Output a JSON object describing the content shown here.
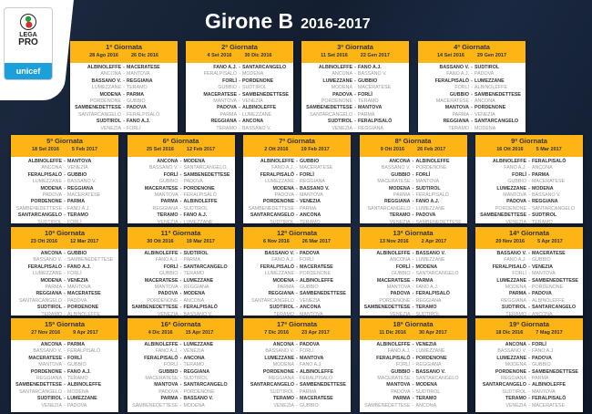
{
  "logo": {
    "text1": "LEGA",
    "text2": "PRO",
    "band": "unicef"
  },
  "header": {
    "title": "Girone B",
    "season": "2016-2017"
  },
  "colors": {
    "background": "#142033",
    "header_bar": "#fcb514"
  },
  "giornate": [
    {
      "label": "1ª Giornata",
      "andata": "28 Ago 2016",
      "ritorno": "26 Dic 2016",
      "matches": [
        [
          "ALBINOLEFFE",
          "MACERATESE"
        ],
        [
          "ANCONA",
          "MANTOVA"
        ],
        [
          "BASSANO V.",
          "REGGIANA"
        ],
        [
          "LUMEZZANE",
          "TERAMO"
        ],
        [
          "MODENA",
          "PARMA"
        ],
        [
          "PORDENONE",
          "GUBBIO"
        ],
        [
          "SAMBENEDETTESE",
          "PADOVA"
        ],
        [
          "SANTARCANGELO",
          "FERALPISALÒ"
        ],
        [
          "SUDTIROL",
          "FANO A.J."
        ],
        [
          "VENEZIA",
          "FORLÌ"
        ]
      ]
    },
    {
      "label": "2ª Giornata",
      "andata": "4 Set 2016",
      "ritorno": "30 Dic 2016",
      "matches": [
        [
          "FANO A.J.",
          "SANTARCANGELO"
        ],
        [
          "FERALPISALÒ",
          "MODENA"
        ],
        [
          "FORLÌ",
          "PORDENONE"
        ],
        [
          "GUBBIO",
          "SUDTIROL"
        ],
        [
          "MACERATESE",
          "SAMBENEDETTESE"
        ],
        [
          "MANTOVA",
          "VENEZIA"
        ],
        [
          "PADOVA",
          "ALBINOLEFFE"
        ],
        [
          "PARMA",
          "LUMEZZANE"
        ],
        [
          "REGGIANA",
          "ANCONA"
        ],
        [
          "TERAMO",
          "BASSANO V."
        ]
      ]
    },
    {
      "label": "3ª Giornata",
      "andata": "11 Set 2016",
      "ritorno": "22 Gen 2017",
      "matches": [
        [
          "ALBINOLEFFE",
          "FANO A.J."
        ],
        [
          "ANCONA",
          "BASSANO V."
        ],
        [
          "LUMEZZANE",
          "GUBBIO"
        ],
        [
          "MODENA",
          "MACERATESE"
        ],
        [
          "PADOVA",
          "FORLÌ"
        ],
        [
          "PORDENONE",
          "TERAMO"
        ],
        [
          "SAMBENEDETTESE",
          "MANTOVA"
        ],
        [
          "SANTARCANGELO",
          "PARMA"
        ],
        [
          "SUDTIROL",
          "FERALPISALÒ"
        ],
        [
          "VENEZIA",
          "REGGIANA"
        ]
      ]
    },
    {
      "label": "4ª Giornata",
      "andata": "14 Set 2016",
      "ritorno": "29 Gen 2017",
      "matches": [
        [
          "BASSANO V.",
          "SUDTIROL"
        ],
        [
          "FANO A.J.",
          "PADOVA"
        ],
        [
          "FERALPISALÒ",
          "LUMEZZANE"
        ],
        [
          "FORLÌ",
          "ALBINOLEFFE"
        ],
        [
          "GUBBIO",
          "SAMBENEDETTESE"
        ],
        [
          "MACERATESE",
          "ANCONA"
        ],
        [
          "MANTOVA",
          "PORDENONE"
        ],
        [
          "PARMA",
          "VENEZIA"
        ],
        [
          "REGGIANA",
          "SANTARCANGELO"
        ],
        [
          "TERAMO",
          "MODENA"
        ]
      ]
    },
    {
      "label": "5ª Giornata",
      "andata": "18 Set 2016",
      "ritorno": "5 Feb 2017",
      "matches": [
        [
          "ALBINOLEFFE",
          "MANTOVA"
        ],
        [
          "ANCONA",
          "VENEZIA"
        ],
        [
          "FERALPISALÒ",
          "GUBBIO"
        ],
        [
          "LUMEZZANE",
          "BASSANO V."
        ],
        [
          "MODENA",
          "REGGIANA"
        ],
        [
          "PADOVA",
          "MACERATESE"
        ],
        [
          "PORDENONE",
          "PARMA"
        ],
        [
          "SAMBENEDETTESE",
          "FANO A.J."
        ],
        [
          "SANTARCANGELO",
          "TERAMO"
        ],
        [
          "SUDTIROL",
          "FORLÌ"
        ]
      ]
    },
    {
      "label": "6ª Giornata",
      "andata": "25 Set 2016",
      "ritorno": "12 Feb 2017",
      "matches": [
        [
          "ANCONA",
          "MODENA"
        ],
        [
          "BASSANO V.",
          "SANTARCANGELO"
        ],
        [
          "FORLÌ",
          "SAMBENEDETTESE"
        ],
        [
          "GUBBIO",
          "PADOVA"
        ],
        [
          "MACERATESE",
          "PORDENONE"
        ],
        [
          "MANTOVA",
          "FERALPISALÒ"
        ],
        [
          "PARMA",
          "ALBINOLEFFE"
        ],
        [
          "REGGIANA",
          "SUDTIROL"
        ],
        [
          "TERAMO",
          "FANO A.J."
        ],
        [
          "VENEZIA",
          "LUMEZZANE"
        ]
      ]
    },
    {
      "label": "7ª Giornata",
      "andata": "2 Ott 2016",
      "ritorno": "19 Feb 2017",
      "matches": [
        [
          "ALBINOLEFFE",
          "GUBBIO"
        ],
        [
          "FANO A.J.",
          "MACERATESE"
        ],
        [
          "FERALPISALÒ",
          "FORLÌ"
        ],
        [
          "LUMEZZANE",
          "REGGIANA"
        ],
        [
          "MODENA",
          "BASSANO V."
        ],
        [
          "PADOVA",
          "MANTOVA"
        ],
        [
          "PORDENONE",
          "VENEZIA"
        ],
        [
          "SAMBENEDETTESE",
          "PARMA"
        ],
        [
          "SANTARCANGELO",
          "ANCONA"
        ],
        [
          "SUDTIROL",
          "TERAMO"
        ]
      ]
    },
    {
      "label": "8ª Giornata",
      "andata": "9 Ott 2016",
      "ritorno": "26 Feb 2017",
      "matches": [
        [
          "ANCONA",
          "ALBINOLEFFE"
        ],
        [
          "BASSANO V.",
          "PORDENONE"
        ],
        [
          "GUBBIO",
          "FORLÌ"
        ],
        [
          "MACERATESE",
          "MANTOVA"
        ],
        [
          "MODENA",
          "SUDTIROL"
        ],
        [
          "PARMA",
          "FERALPISALÒ"
        ],
        [
          "REGGIANA",
          "FANO A.J."
        ],
        [
          "SANTARCANGELO",
          "LUMEZZANE"
        ],
        [
          "TERAMO",
          "PADOVA"
        ],
        [
          "VENEZIA",
          "SAMBENEDETTESE"
        ]
      ]
    },
    {
      "label": "9ª Giornata",
      "andata": "16 Ott 2016",
      "ritorno": "5 Mar 2017",
      "matches": [
        [
          "ALBINOLEFFE",
          "FERALPISALÒ"
        ],
        [
          "FANO A.J.",
          "ANCONA"
        ],
        [
          "FORLÌ",
          "PARMA"
        ],
        [
          "GUBBIO",
          "MACERATESE"
        ],
        [
          "LUMEZZANE",
          "MODENA"
        ],
        [
          "MANTOVA",
          "BASSANO V."
        ],
        [
          "PADOVA",
          "REGGIANA"
        ],
        [
          "PORDENONE",
          "SANTARCANGELO"
        ],
        [
          "SAMBENEDETTESE",
          "SUDTIROL"
        ],
        [
          "VENEZIA",
          "TERAMO"
        ]
      ]
    },
    {
      "label": "10ª Giornata",
      "andata": "23 Ott 2016",
      "ritorno": "12 Mar 2017",
      "matches": [
        [
          "ANCONA",
          "GUBBIO"
        ],
        [
          "BASSANO V.",
          "SAMBENEDETTESE"
        ],
        [
          "FERALPISALÒ",
          "FANO A.J."
        ],
        [
          "LUMEZZANE",
          "FORLÌ"
        ],
        [
          "MODENA",
          "VENEZIA"
        ],
        [
          "PARMA",
          "MANTOVA"
        ],
        [
          "REGGIANA",
          "MACERATESE"
        ],
        [
          "SANTARCANGELO",
          "PADOVA"
        ],
        [
          "SUDTIROL",
          "PORDENONE"
        ],
        [
          "TERAMO",
          "ALBINOLEFFE"
        ]
      ]
    },
    {
      "label": "11ª Giornata",
      "andata": "30 Ott 2016",
      "ritorno": "19 Mar 2017",
      "matches": [
        [
          "ALBINOLEFFE",
          "SUDTIROL"
        ],
        [
          "FANO A.J.",
          "PARMA"
        ],
        [
          "FORLÌ",
          "SANTARCANGELO"
        ],
        [
          "GUBBIO",
          "TERAMO"
        ],
        [
          "MACERATESE",
          "LUMEZZANE"
        ],
        [
          "MANTOVA",
          "REGGIANA"
        ],
        [
          "PADOVA",
          "MODENA"
        ],
        [
          "PORDENONE",
          "ANCONA"
        ],
        [
          "SAMBENEDETTESE",
          "FERALPISALÒ"
        ],
        [
          "VENEZIA",
          "BASSANO V."
        ]
      ]
    },
    {
      "label": "12ª Giornata",
      "andata": "6 Nov 2016",
      "ritorno": "26 Mar 2017",
      "matches": [
        [
          "BASSANO V.",
          "PADOVA"
        ],
        [
          "FANO A.J.",
          "FORLÌ"
        ],
        [
          "FERALPISALÒ",
          "MACERATESE"
        ],
        [
          "LUMEZZANE",
          "PORDENONE"
        ],
        [
          "MODENA",
          "ALBINOLEFFE"
        ],
        [
          "PARMA",
          "GUBBIO"
        ],
        [
          "REGGIANA",
          "SAMBENEDETTESE"
        ],
        [
          "SANTARCANGELO",
          "VENEZIA"
        ],
        [
          "SUDTIROL",
          "ANCONA"
        ],
        [
          "TERAMO",
          "MANTOVA"
        ]
      ]
    },
    {
      "label": "13ª Giornata",
      "andata": "13 Nov 2016",
      "ritorno": "2 Apr 2017",
      "matches": [
        [
          "ALBINOLEFFE",
          "BASSANO V."
        ],
        [
          "ANCONA",
          "LUMEZZANE"
        ],
        [
          "FORLÌ",
          "MODENA"
        ],
        [
          "GUBBIO",
          "SANTARCANGELO"
        ],
        [
          "MACERATESE",
          "PARMA"
        ],
        [
          "MANTOVA",
          "FANO A.J."
        ],
        [
          "PADOVA",
          "FERALPISALÒ"
        ],
        [
          "PORDENONE",
          "REGGIANA"
        ],
        [
          "SAMBENEDETTESE",
          "TERAMO"
        ],
        [
          "VENEZIA",
          "SUDTIROL"
        ]
      ]
    },
    {
      "label": "14ª Giornata",
      "andata": "20 Nov 2016",
      "ritorno": "5 Apr 2017",
      "matches": [
        [
          "BASSANO V.",
          "MACERATESE"
        ],
        [
          "FANO A.J.",
          "GUBBIO"
        ],
        [
          "FERALPISALÒ",
          "VENEZIA"
        ],
        [
          "FORLÌ",
          "MANTOVA"
        ],
        [
          "LUMEZZANE",
          "SAMBENEDETTESE"
        ],
        [
          "MODENA",
          "PORDENONE"
        ],
        [
          "PARMA",
          "PADOVA"
        ],
        [
          "REGGIANA",
          "ALBINOLEFFE"
        ],
        [
          "SUDTIROL",
          "SANTARCANGELO"
        ],
        [
          "TERAMO",
          "ANCONA"
        ]
      ]
    },
    {
      "label": "15ª Giornata",
      "andata": "27 Nov 2016",
      "ritorno": "9 Apr 2017",
      "matches": [
        [
          "ANCONA",
          "PARMA"
        ],
        [
          "BASSANO V.",
          "FERALPISALÒ"
        ],
        [
          "MACERATESE",
          "FORLÌ"
        ],
        [
          "MANTOVA",
          "GUBBIO"
        ],
        [
          "PORDENONE",
          "FANO A.J."
        ],
        [
          "REGGIANA",
          "TERAMO"
        ],
        [
          "SAMBENEDETTESE",
          "ALBINOLEFFE"
        ],
        [
          "SANTARCANGELO",
          "MODENA"
        ],
        [
          "SUDTIROL",
          "LUMEZZANE"
        ],
        [
          "VENEZIA",
          "PADOVA"
        ]
      ]
    },
    {
      "label": "16ª Giornata",
      "andata": "4 Dic 2016",
      "ritorno": "15 Apr 2017",
      "matches": [
        [
          "ALBINOLEFFE",
          "LUMEZZANE"
        ],
        [
          "FANO A.J.",
          "VENEZIA"
        ],
        [
          "FERALPISALÒ",
          "ANCONA"
        ],
        [
          "FORLÌ",
          "TERAMO"
        ],
        [
          "GUBBIO",
          "REGGIANA"
        ],
        [
          "MACERATESE",
          "SUDTIROL"
        ],
        [
          "MANTOVA",
          "SANTARCANGELO"
        ],
        [
          "PADOVA",
          "PORDENONE"
        ],
        [
          "PARMA",
          "BASSANO V."
        ],
        [
          "SAMBENEDETTESE",
          "MODENA"
        ]
      ]
    },
    {
      "label": "17ª Giornata",
      "andata": "7 Dic 2016",
      "ritorno": "23 Apr 2017",
      "matches": [
        [
          "ANCONA",
          "PADOVA"
        ],
        [
          "BASSANO V.",
          "FORLÌ"
        ],
        [
          "LUMEZZANE",
          "MANTOVA"
        ],
        [
          "MODENA",
          "FANO A.J."
        ],
        [
          "PORDENONE",
          "ALBINOLEFFE"
        ],
        [
          "REGGIANA",
          "FERALPISALÒ"
        ],
        [
          "SANTARCANGELO",
          "SAMBENEDETTESE"
        ],
        [
          "SUDTIROL",
          "PARMA"
        ],
        [
          "TERAMO",
          "MACERATESE"
        ],
        [
          "VENEZIA",
          "GUBBIO"
        ]
      ]
    },
    {
      "label": "18ª Giornata",
      "andata": "11 Dic 2016",
      "ritorno": "30 Apr 2017",
      "matches": [
        [
          "ALBINOLEFFE",
          "VENEZIA"
        ],
        [
          "FANO A.J.",
          "LUMEZZANE"
        ],
        [
          "FERALPISALÒ",
          "PORDENONE"
        ],
        [
          "FORLÌ",
          "REGGIANA"
        ],
        [
          "GUBBIO",
          "BASSANO V."
        ],
        [
          "MACERATESE",
          "SANTARCANGELO"
        ],
        [
          "MANTOVA",
          "MODENA"
        ],
        [
          "PADOVA",
          "SUDTIROL"
        ],
        [
          "PARMA",
          "TERAMO"
        ],
        [
          "SAMBENEDETTESE",
          "ANCONA"
        ]
      ]
    },
    {
      "label": "19ª Giornata",
      "andata": "18 Dic 2016",
      "ritorno": "7 Mag 2017",
      "matches": [
        [
          "ANCONA",
          "FORLÌ"
        ],
        [
          "BASSANO V.",
          "FANO A.J."
        ],
        [
          "LUMEZZANE",
          "PADOVA"
        ],
        [
          "MODENA",
          "GUBBIO"
        ],
        [
          "PORDENONE",
          "SAMBENEDETTESE"
        ],
        [
          "REGGIANA",
          "PARMA"
        ],
        [
          "SANTARCANGELO",
          "ALBINOLEFFE"
        ],
        [
          "SUDTIROL",
          "MANTOVA"
        ],
        [
          "TERAMO",
          "FERALPISALÒ"
        ],
        [
          "VENEZIA",
          "MACERATESE"
        ]
      ]
    }
  ]
}
